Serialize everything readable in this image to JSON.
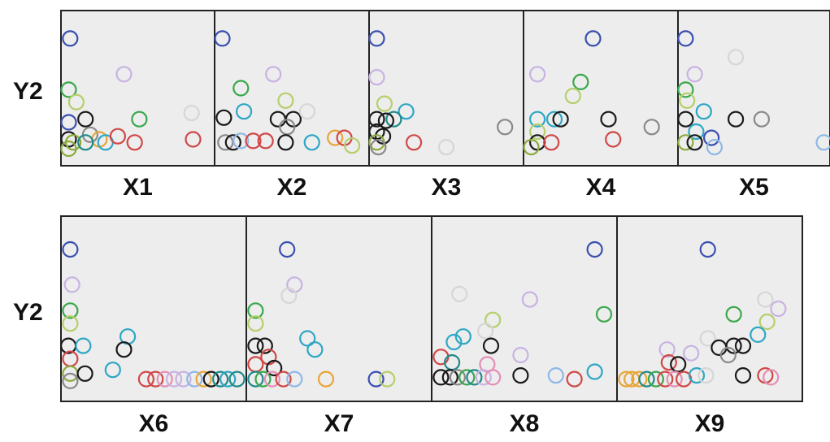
{
  "chart_data": {
    "type": "scatter",
    "ylabel_row1": "Y2",
    "ylabel_row2": "Y2",
    "xlim": [
      0,
      1
    ],
    "ylim": [
      0,
      1
    ],
    "grid": false,
    "legend": "none",
    "palette": {
      "blue": "#3a4fb0",
      "lavender": "#c8b3e3",
      "green": "#3aa84c",
      "lightgreen": "#b5cf6b",
      "olive": "#8cab3d",
      "cyan": "#2ea7c4",
      "black": "#1a1a1a",
      "red": "#d04848",
      "pink": "#e58fb5",
      "orange": "#e8a53b",
      "teal": "#1f8a8a",
      "gray": "#8a8a8a",
      "lightblue": "#8fb8e8",
      "lightgray": "#d6d6d6"
    },
    "panels": [
      {
        "label": "X1",
        "points": [
          {
            "x": 0.06,
            "y": 0.82,
            "c": "blue"
          },
          {
            "x": 0.41,
            "y": 0.59,
            "c": "lavender"
          },
          {
            "x": 0.85,
            "y": 0.34,
            "c": "lightgray"
          },
          {
            "x": 0.05,
            "y": 0.49,
            "c": "green"
          },
          {
            "x": 0.1,
            "y": 0.41,
            "c": "lightgreen"
          },
          {
            "x": 0.05,
            "y": 0.28,
            "c": "blue"
          },
          {
            "x": 0.16,
            "y": 0.3,
            "c": "black"
          },
          {
            "x": 0.51,
            "y": 0.3,
            "c": "green"
          },
          {
            "x": 0.19,
            "y": 0.2,
            "c": "gray"
          },
          {
            "x": 0.25,
            "y": 0.17,
            "c": "orange"
          },
          {
            "x": 0.05,
            "y": 0.17,
            "c": "black"
          },
          {
            "x": 0.08,
            "y": 0.15,
            "c": "olive"
          },
          {
            "x": 0.16,
            "y": 0.15,
            "c": "teal"
          },
          {
            "x": 0.29,
            "y": 0.15,
            "c": "cyan"
          },
          {
            "x": 0.37,
            "y": 0.19,
            "c": "red"
          },
          {
            "x": 0.48,
            "y": 0.15,
            "c": "red"
          },
          {
            "x": 0.86,
            "y": 0.17,
            "c": "red"
          },
          {
            "x": 0.05,
            "y": 0.11,
            "c": "olive"
          }
        ]
      },
      {
        "label": "X2",
        "points": [
          {
            "x": 0.05,
            "y": 0.82,
            "c": "blue"
          },
          {
            "x": 0.38,
            "y": 0.59,
            "c": "lavender"
          },
          {
            "x": 0.46,
            "y": 0.42,
            "c": "lightgreen"
          },
          {
            "x": 0.17,
            "y": 0.5,
            "c": "green"
          },
          {
            "x": 0.19,
            "y": 0.35,
            "c": "cyan"
          },
          {
            "x": 0.06,
            "y": 0.31,
            "c": "black"
          },
          {
            "x": 0.41,
            "y": 0.3,
            "c": "black"
          },
          {
            "x": 0.51,
            "y": 0.3,
            "c": "black"
          },
          {
            "x": 0.6,
            "y": 0.35,
            "c": "lightgray"
          },
          {
            "x": 0.47,
            "y": 0.25,
            "c": "gray"
          },
          {
            "x": 0.07,
            "y": 0.15,
            "c": "gray"
          },
          {
            "x": 0.12,
            "y": 0.15,
            "c": "black"
          },
          {
            "x": 0.17,
            "y": 0.16,
            "c": "lightblue"
          },
          {
            "x": 0.25,
            "y": 0.16,
            "c": "red"
          },
          {
            "x": 0.33,
            "y": 0.16,
            "c": "red"
          },
          {
            "x": 0.46,
            "y": 0.15,
            "c": "black"
          },
          {
            "x": 0.63,
            "y": 0.15,
            "c": "cyan"
          },
          {
            "x": 0.78,
            "y": 0.18,
            "c": "orange"
          },
          {
            "x": 0.84,
            "y": 0.18,
            "c": "red"
          },
          {
            "x": 0.89,
            "y": 0.13,
            "c": "lightgreen"
          }
        ]
      },
      {
        "label": "X3",
        "points": [
          {
            "x": 0.05,
            "y": 0.82,
            "c": "blue"
          },
          {
            "x": 0.05,
            "y": 0.57,
            "c": "lavender"
          },
          {
            "x": 0.1,
            "y": 0.4,
            "c": "lightgreen"
          },
          {
            "x": 0.24,
            "y": 0.35,
            "c": "cyan"
          },
          {
            "x": 0.16,
            "y": 0.3,
            "c": "teal"
          },
          {
            "x": 0.05,
            "y": 0.3,
            "c": "black"
          },
          {
            "x": 0.11,
            "y": 0.29,
            "c": "black"
          },
          {
            "x": 0.05,
            "y": 0.22,
            "c": "black"
          },
          {
            "x": 0.09,
            "y": 0.19,
            "c": "black"
          },
          {
            "x": 0.05,
            "y": 0.15,
            "c": "olive"
          },
          {
            "x": 0.06,
            "y": 0.12,
            "c": "gray"
          },
          {
            "x": 0.29,
            "y": 0.15,
            "c": "red"
          },
          {
            "x": 0.88,
            "y": 0.25,
            "c": "gray"
          },
          {
            "x": 0.5,
            "y": 0.12,
            "c": "lightgray"
          }
        ]
      },
      {
        "label": "X4",
        "points": [
          {
            "x": 0.45,
            "y": 0.82,
            "c": "blue"
          },
          {
            "x": 0.09,
            "y": 0.59,
            "c": "lavender"
          },
          {
            "x": 0.37,
            "y": 0.54,
            "c": "green"
          },
          {
            "x": 0.32,
            "y": 0.45,
            "c": "lightgreen"
          },
          {
            "x": 0.09,
            "y": 0.3,
            "c": "cyan"
          },
          {
            "x": 0.2,
            "y": 0.3,
            "c": "cyan"
          },
          {
            "x": 0.24,
            "y": 0.3,
            "c": "black"
          },
          {
            "x": 0.55,
            "y": 0.3,
            "c": "black"
          },
          {
            "x": 0.83,
            "y": 0.25,
            "c": "gray"
          },
          {
            "x": 0.09,
            "y": 0.22,
            "c": "lightgreen"
          },
          {
            "x": 0.09,
            "y": 0.15,
            "c": "black"
          },
          {
            "x": 0.18,
            "y": 0.15,
            "c": "red"
          },
          {
            "x": 0.58,
            "y": 0.17,
            "c": "red"
          },
          {
            "x": 0.05,
            "y": 0.12,
            "c": "olive"
          }
        ]
      },
      {
        "label": "X5",
        "points": [
          {
            "x": 0.05,
            "y": 0.82,
            "c": "blue"
          },
          {
            "x": 0.38,
            "y": 0.7,
            "c": "lightgray"
          },
          {
            "x": 0.11,
            "y": 0.59,
            "c": "lavender"
          },
          {
            "x": 0.05,
            "y": 0.49,
            "c": "green"
          },
          {
            "x": 0.06,
            "y": 0.42,
            "c": "lightgreen"
          },
          {
            "x": 0.17,
            "y": 0.35,
            "c": "cyan"
          },
          {
            "x": 0.05,
            "y": 0.3,
            "c": "black"
          },
          {
            "x": 0.38,
            "y": 0.3,
            "c": "black"
          },
          {
            "x": 0.55,
            "y": 0.3,
            "c": "gray"
          },
          {
            "x": 0.12,
            "y": 0.22,
            "c": "cyan"
          },
          {
            "x": 0.22,
            "y": 0.18,
            "c": "blue"
          },
          {
            "x": 0.05,
            "y": 0.15,
            "c": "olive"
          },
          {
            "x": 0.11,
            "y": 0.15,
            "c": "black"
          },
          {
            "x": 0.24,
            "y": 0.12,
            "c": "lightblue"
          },
          {
            "x": 0.96,
            "y": 0.15,
            "c": "lightblue"
          }
        ]
      },
      {
        "label": "X6",
        "points": [
          {
            "x": 0.05,
            "y": 0.82,
            "c": "blue"
          },
          {
            "x": 0.06,
            "y": 0.63,
            "c": "lavender"
          },
          {
            "x": 0.05,
            "y": 0.49,
            "c": "green"
          },
          {
            "x": 0.05,
            "y": 0.42,
            "c": "lightgreen"
          },
          {
            "x": 0.04,
            "y": 0.3,
            "c": "black"
          },
          {
            "x": 0.12,
            "y": 0.3,
            "c": "cyan"
          },
          {
            "x": 0.36,
            "y": 0.35,
            "c": "cyan"
          },
          {
            "x": 0.34,
            "y": 0.28,
            "c": "black"
          },
          {
            "x": 0.05,
            "y": 0.23,
            "c": "red"
          },
          {
            "x": 0.28,
            "y": 0.17,
            "c": "cyan"
          },
          {
            "x": 0.05,
            "y": 0.15,
            "c": "olive"
          },
          {
            "x": 0.13,
            "y": 0.15,
            "c": "black"
          },
          {
            "x": 0.05,
            "y": 0.11,
            "c": "gray"
          },
          {
            "x": 0.46,
            "y": 0.12,
            "c": "red"
          },
          {
            "x": 0.51,
            "y": 0.12,
            "c": "red"
          },
          {
            "x": 0.56,
            "y": 0.12,
            "c": "pink"
          },
          {
            "x": 0.61,
            "y": 0.12,
            "c": "lavender"
          },
          {
            "x": 0.66,
            "y": 0.12,
            "c": "lavender"
          },
          {
            "x": 0.72,
            "y": 0.12,
            "c": "lightblue"
          },
          {
            "x": 0.77,
            "y": 0.12,
            "c": "orange"
          },
          {
            "x": 0.81,
            "y": 0.12,
            "c": "black"
          },
          {
            "x": 0.86,
            "y": 0.12,
            "c": "teal"
          },
          {
            "x": 0.9,
            "y": 0.12,
            "c": "cyan"
          },
          {
            "x": 0.95,
            "y": 0.12,
            "c": "teal"
          }
        ]
      },
      {
        "label": "X7",
        "points": [
          {
            "x": 0.22,
            "y": 0.82,
            "c": "blue"
          },
          {
            "x": 0.26,
            "y": 0.63,
            "c": "lavender"
          },
          {
            "x": 0.23,
            "y": 0.57,
            "c": "lightgray"
          },
          {
            "x": 0.05,
            "y": 0.49,
            "c": "green"
          },
          {
            "x": 0.05,
            "y": 0.42,
            "c": "lightgreen"
          },
          {
            "x": 0.33,
            "y": 0.34,
            "c": "cyan"
          },
          {
            "x": 0.37,
            "y": 0.28,
            "c": "cyan"
          },
          {
            "x": 0.05,
            "y": 0.3,
            "c": "black"
          },
          {
            "x": 0.1,
            "y": 0.3,
            "c": "black"
          },
          {
            "x": 0.12,
            "y": 0.24,
            "c": "red"
          },
          {
            "x": 0.05,
            "y": 0.2,
            "c": "red"
          },
          {
            "x": 0.15,
            "y": 0.18,
            "c": "black"
          },
          {
            "x": 0.05,
            "y": 0.12,
            "c": "teal"
          },
          {
            "x": 0.09,
            "y": 0.12,
            "c": "green"
          },
          {
            "x": 0.14,
            "y": 0.12,
            "c": "pink"
          },
          {
            "x": 0.2,
            "y": 0.12,
            "c": "red"
          },
          {
            "x": 0.26,
            "y": 0.12,
            "c": "lightblue"
          },
          {
            "x": 0.43,
            "y": 0.12,
            "c": "orange"
          },
          {
            "x": 0.7,
            "y": 0.12,
            "c": "blue"
          },
          {
            "x": 0.76,
            "y": 0.12,
            "c": "lightgreen"
          }
        ]
      },
      {
        "label": "X8",
        "points": [
          {
            "x": 0.88,
            "y": 0.82,
            "c": "blue"
          },
          {
            "x": 0.15,
            "y": 0.58,
            "c": "lightgray"
          },
          {
            "x": 0.53,
            "y": 0.55,
            "c": "lavender"
          },
          {
            "x": 0.93,
            "y": 0.47,
            "c": "green"
          },
          {
            "x": 0.33,
            "y": 0.44,
            "c": "lightgreen"
          },
          {
            "x": 0.29,
            "y": 0.38,
            "c": "lightgray"
          },
          {
            "x": 0.12,
            "y": 0.32,
            "c": "cyan"
          },
          {
            "x": 0.17,
            "y": 0.35,
            "c": "cyan"
          },
          {
            "x": 0.32,
            "y": 0.3,
            "c": "black"
          },
          {
            "x": 0.48,
            "y": 0.25,
            "c": "lavender"
          },
          {
            "x": 0.05,
            "y": 0.24,
            "c": "red"
          },
          {
            "x": 0.11,
            "y": 0.21,
            "c": "teal"
          },
          {
            "x": 0.3,
            "y": 0.2,
            "c": "pink"
          },
          {
            "x": 0.05,
            "y": 0.13,
            "c": "black"
          },
          {
            "x": 0.1,
            "y": 0.13,
            "c": "black"
          },
          {
            "x": 0.14,
            "y": 0.13,
            "c": "gray"
          },
          {
            "x": 0.19,
            "y": 0.13,
            "c": "green"
          },
          {
            "x": 0.23,
            "y": 0.13,
            "c": "teal"
          },
          {
            "x": 0.28,
            "y": 0.13,
            "c": "lavender"
          },
          {
            "x": 0.33,
            "y": 0.13,
            "c": "pink"
          },
          {
            "x": 0.48,
            "y": 0.14,
            "c": "black"
          },
          {
            "x": 0.67,
            "y": 0.14,
            "c": "lightblue"
          },
          {
            "x": 0.77,
            "y": 0.12,
            "c": "red"
          },
          {
            "x": 0.88,
            "y": 0.16,
            "c": "cyan"
          }
        ]
      },
      {
        "label": "X9",
        "points": [
          {
            "x": 0.49,
            "y": 0.82,
            "c": "blue"
          },
          {
            "x": 0.8,
            "y": 0.55,
            "c": "lightgray"
          },
          {
            "x": 0.87,
            "y": 0.5,
            "c": "lavender"
          },
          {
            "x": 0.63,
            "y": 0.47,
            "c": "green"
          },
          {
            "x": 0.81,
            "y": 0.43,
            "c": "lightgreen"
          },
          {
            "x": 0.76,
            "y": 0.36,
            "c": "cyan"
          },
          {
            "x": 0.49,
            "y": 0.34,
            "c": "lightgray"
          },
          {
            "x": 0.55,
            "y": 0.29,
            "c": "black"
          },
          {
            "x": 0.63,
            "y": 0.3,
            "c": "black"
          },
          {
            "x": 0.68,
            "y": 0.3,
            "c": "black"
          },
          {
            "x": 0.27,
            "y": 0.28,
            "c": "lavender"
          },
          {
            "x": 0.4,
            "y": 0.26,
            "c": "lavender"
          },
          {
            "x": 0.6,
            "y": 0.25,
            "c": "gray"
          },
          {
            "x": 0.28,
            "y": 0.21,
            "c": "red"
          },
          {
            "x": 0.33,
            "y": 0.2,
            "c": "black"
          },
          {
            "x": 0.05,
            "y": 0.12,
            "c": "orange"
          },
          {
            "x": 0.08,
            "y": 0.12,
            "c": "orange"
          },
          {
            "x": 0.12,
            "y": 0.12,
            "c": "orange"
          },
          {
            "x": 0.16,
            "y": 0.12,
            "c": "teal"
          },
          {
            "x": 0.21,
            "y": 0.12,
            "c": "green"
          },
          {
            "x": 0.26,
            "y": 0.12,
            "c": "red"
          },
          {
            "x": 0.31,
            "y": 0.12,
            "c": "pink"
          },
          {
            "x": 0.36,
            "y": 0.12,
            "c": "red"
          },
          {
            "x": 0.43,
            "y": 0.14,
            "c": "cyan"
          },
          {
            "x": 0.48,
            "y": 0.14,
            "c": "lightgray"
          },
          {
            "x": 0.68,
            "y": 0.14,
            "c": "black"
          },
          {
            "x": 0.8,
            "y": 0.14,
            "c": "red"
          },
          {
            "x": 0.83,
            "y": 0.13,
            "c": "pink"
          }
        ]
      }
    ]
  }
}
